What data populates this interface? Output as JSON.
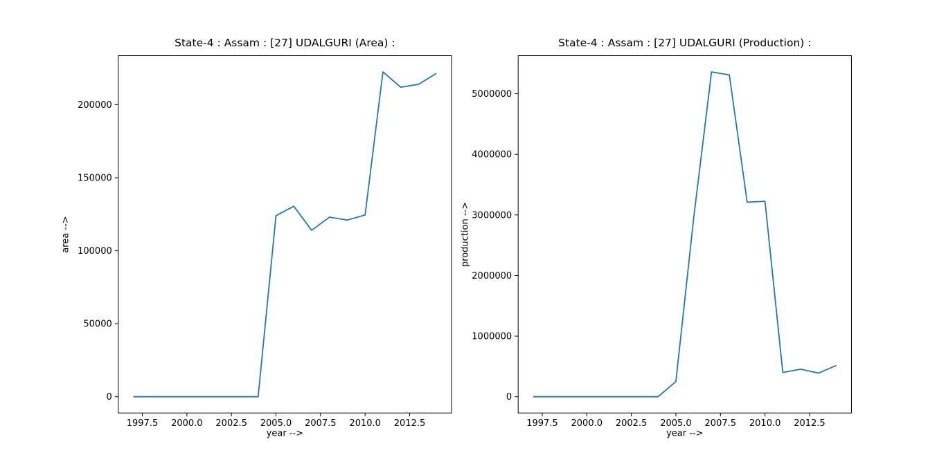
{
  "figure": {
    "background": "#ffffff",
    "line_color": "#1f77b4",
    "axis_color": "#000000"
  },
  "chart_data": [
    {
      "type": "line",
      "title": "State-4 : Assam : [27] UDALGURI (Area) :",
      "xlabel": "year -->",
      "ylabel": "area -->",
      "x": [
        1997,
        1998,
        1999,
        2000,
        2001,
        2002,
        2003,
        2004,
        2005,
        2006,
        2007,
        2008,
        2009,
        2010,
        2011,
        2012,
        2013,
        2014
      ],
      "y": [
        0,
        0,
        0,
        0,
        0,
        0,
        0,
        0,
        124000,
        130500,
        114000,
        123000,
        121000,
        124500,
        222500,
        212000,
        214000,
        221500
      ],
      "xlim": [
        1996.15,
        2014.85
      ],
      "ylim": [
        -11125,
        233625
      ],
      "xticks": [
        1997.5,
        2000.0,
        2002.5,
        2005.0,
        2007.5,
        2010.0,
        2012.5
      ],
      "xtick_labels": [
        "1997.5",
        "2000.0",
        "2002.5",
        "2005.0",
        "2007.5",
        "2010.0",
        "2012.5"
      ],
      "yticks": [
        0,
        50000,
        100000,
        150000,
        200000
      ],
      "ytick_labels": [
        "0",
        "50000",
        "100000",
        "150000",
        "200000"
      ],
      "grid": false,
      "legend": null,
      "line_color": "#1f77b4"
    },
    {
      "type": "line",
      "title": "State-4 : Assam : [27] UDALGURI (Production) :",
      "xlabel": "year -->",
      "ylabel": "production -->",
      "x": [
        1997,
        1998,
        1999,
        2000,
        2001,
        2002,
        2003,
        2004,
        2005,
        2006,
        2007,
        2008,
        2009,
        2010,
        2011,
        2012,
        2013,
        2014
      ],
      "y": [
        0,
        0,
        0,
        0,
        0,
        0,
        0,
        0,
        250000,
        2950000,
        5360000,
        5310000,
        3210000,
        3225000,
        400000,
        455000,
        390000,
        515000
      ],
      "xlim": [
        1996.15,
        2014.85
      ],
      "ylim": [
        -268000,
        5628000
      ],
      "xticks": [
        1997.5,
        2000.0,
        2002.5,
        2005.0,
        2007.5,
        2010.0,
        2012.5
      ],
      "xtick_labels": [
        "1997.5",
        "2000.0",
        "2002.5",
        "2005.0",
        "2007.5",
        "2010.0",
        "2012.5"
      ],
      "yticks": [
        0,
        1000000,
        2000000,
        3000000,
        4000000,
        5000000
      ],
      "ytick_labels": [
        "0",
        "1000000",
        "2000000",
        "3000000",
        "4000000",
        "5000000"
      ],
      "grid": false,
      "legend": null,
      "line_color": "#1f77b4"
    }
  ]
}
